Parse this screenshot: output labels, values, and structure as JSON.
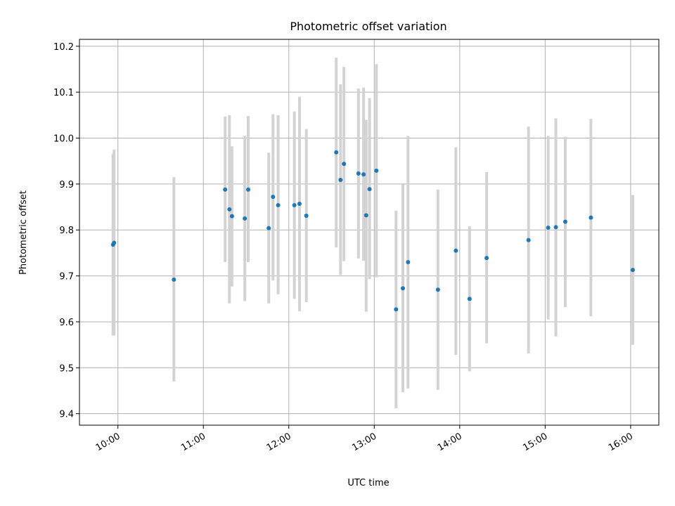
{
  "chart_data": {
    "type": "scatter",
    "title": "Photometric offset variation",
    "xlabel": "UTC time",
    "ylabel": "Photometric offset",
    "xlim_hours": [
      9.55,
      16.33
    ],
    "ylim": [
      9.375,
      10.215
    ],
    "x_ticks": [
      {
        "value": 10,
        "label": "10:00"
      },
      {
        "value": 11,
        "label": "11:00"
      },
      {
        "value": 12,
        "label": "12:00"
      },
      {
        "value": 13,
        "label": "13:00"
      },
      {
        "value": 14,
        "label": "14:00"
      },
      {
        "value": 15,
        "label": "15:00"
      },
      {
        "value": 16,
        "label": "16:00"
      }
    ],
    "y_ticks": [
      {
        "value": 9.4,
        "label": "9.4"
      },
      {
        "value": 9.5,
        "label": "9.5"
      },
      {
        "value": 9.6,
        "label": "9.6"
      },
      {
        "value": 9.7,
        "label": "9.7"
      },
      {
        "value": 9.8,
        "label": "9.8"
      },
      {
        "value": 9.9,
        "label": "9.9"
      },
      {
        "value": 10.0,
        "label": "10.0"
      },
      {
        "value": 10.1,
        "label": "10.1"
      },
      {
        "value": 10.2,
        "label": "10.2"
      }
    ],
    "grid": true,
    "colors": {
      "point": "#1f77b4",
      "errorbar": "#d3d3d3",
      "grid": "#b0b0b0",
      "axes": "#000000"
    },
    "points": [
      {
        "x": 9.943,
        "y": 9.768,
        "lo": 9.57,
        "hi": 9.965
      },
      {
        "x": 9.955,
        "y": 9.772,
        "lo": 9.57,
        "hi": 9.975
      },
      {
        "x": 10.655,
        "y": 9.692,
        "lo": 9.47,
        "hi": 9.915
      },
      {
        "x": 11.255,
        "y": 9.888,
        "lo": 9.73,
        "hi": 10.047
      },
      {
        "x": 11.305,
        "y": 9.845,
        "lo": 9.64,
        "hi": 10.05
      },
      {
        "x": 11.335,
        "y": 9.83,
        "lo": 9.677,
        "hi": 9.982
      },
      {
        "x": 11.485,
        "y": 9.825,
        "lo": 9.645,
        "hi": 10.005
      },
      {
        "x": 11.525,
        "y": 9.888,
        "lo": 9.73,
        "hi": 10.048
      },
      {
        "x": 11.765,
        "y": 9.804,
        "lo": 9.64,
        "hi": 9.968
      },
      {
        "x": 11.815,
        "y": 9.872,
        "lo": 9.69,
        "hi": 10.052
      },
      {
        "x": 11.875,
        "y": 9.854,
        "lo": 9.66,
        "hi": 10.05
      },
      {
        "x": 12.065,
        "y": 9.854,
        "lo": 9.65,
        "hi": 10.058
      },
      {
        "x": 12.125,
        "y": 9.857,
        "lo": 9.623,
        "hi": 10.09
      },
      {
        "x": 12.205,
        "y": 9.831,
        "lo": 9.643,
        "hi": 10.02
      },
      {
        "x": 12.555,
        "y": 9.969,
        "lo": 9.762,
        "hi": 10.175
      },
      {
        "x": 12.605,
        "y": 9.909,
        "lo": 9.702,
        "hi": 10.117
      },
      {
        "x": 12.645,
        "y": 9.944,
        "lo": 9.732,
        "hi": 10.155
      },
      {
        "x": 12.815,
        "y": 9.923,
        "lo": 9.738,
        "hi": 10.108
      },
      {
        "x": 12.875,
        "y": 9.921,
        "lo": 9.733,
        "hi": 10.11
      },
      {
        "x": 12.905,
        "y": 9.832,
        "lo": 9.622,
        "hi": 10.04
      },
      {
        "x": 12.945,
        "y": 9.889,
        "lo": 9.693,
        "hi": 10.087
      },
      {
        "x": 13.025,
        "y": 9.929,
        "lo": 9.697,
        "hi": 10.161
      },
      {
        "x": 13.255,
        "y": 9.627,
        "lo": 9.412,
        "hi": 9.842
      },
      {
        "x": 13.335,
        "y": 9.673,
        "lo": 9.447,
        "hi": 9.899
      },
      {
        "x": 13.395,
        "y": 9.73,
        "lo": 9.455,
        "hi": 10.005
      },
      {
        "x": 13.745,
        "y": 9.67,
        "lo": 9.452,
        "hi": 9.888
      },
      {
        "x": 13.955,
        "y": 9.755,
        "lo": 9.528,
        "hi": 9.98
      },
      {
        "x": 14.115,
        "y": 9.65,
        "lo": 9.492,
        "hi": 9.808
      },
      {
        "x": 14.315,
        "y": 9.739,
        "lo": 9.553,
        "hi": 9.926
      },
      {
        "x": 14.805,
        "y": 9.778,
        "lo": 9.531,
        "hi": 10.025
      },
      {
        "x": 15.035,
        "y": 9.805,
        "lo": 9.605,
        "hi": 10.005
      },
      {
        "x": 15.125,
        "y": 9.806,
        "lo": 9.568,
        "hi": 10.043
      },
      {
        "x": 15.235,
        "y": 9.818,
        "lo": 9.632,
        "hi": 10.003
      },
      {
        "x": 15.535,
        "y": 9.827,
        "lo": 9.612,
        "hi": 10.042
      },
      {
        "x": 16.025,
        "y": 9.713,
        "lo": 9.55,
        "hi": 9.876
      }
    ]
  }
}
